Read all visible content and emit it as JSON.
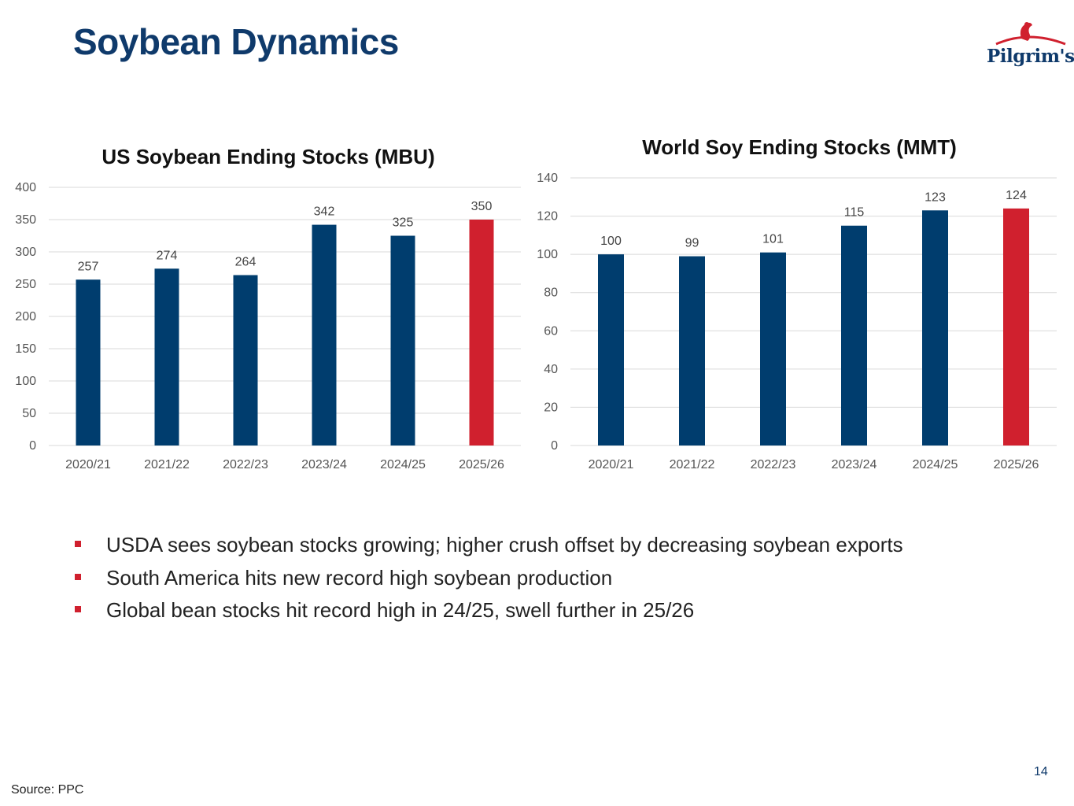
{
  "page": {
    "title": "Soybean Dynamics",
    "logo_text": "Pilgrim's",
    "bullets": [
      "USDA sees soybean stocks growing; higher crush offset by decreasing soybean exports",
      "South America hits new record high soybean production",
      "Global bean stocks hit record high in 24/25, swell further in 25/26"
    ],
    "source": "Source: PPC",
    "page_number": "14"
  },
  "colors": {
    "title": "#0f3a6b",
    "bar_primary": "#003d6e",
    "bar_highlight": "#d0202e",
    "bullet_marker": "#d0202e"
  },
  "chart_data": [
    {
      "type": "bar",
      "title": "US Soybean Ending Stocks (MBU)",
      "categories": [
        "2020/21",
        "2021/22",
        "2022/23",
        "2023/24",
        "2024/25",
        "2025/26"
      ],
      "values": [
        257,
        274,
        264,
        342,
        325,
        350
      ],
      "highlight_index": 5,
      "ylim": [
        0,
        400
      ],
      "yticks": [
        0,
        50,
        100,
        150,
        200,
        250,
        300,
        350,
        400
      ],
      "xlabel": "",
      "ylabel": "",
      "grid": true
    },
    {
      "type": "bar",
      "title": "World Soy Ending Stocks (MMT)",
      "categories": [
        "2020/21",
        "2021/22",
        "2022/23",
        "2023/24",
        "2024/25",
        "2025/26"
      ],
      "values": [
        100,
        99,
        101,
        115,
        123,
        124
      ],
      "highlight_index": 5,
      "ylim": [
        0,
        140
      ],
      "yticks": [
        0,
        20,
        40,
        60,
        80,
        100,
        120,
        140
      ],
      "xlabel": "",
      "ylabel": "",
      "grid": true
    }
  ]
}
